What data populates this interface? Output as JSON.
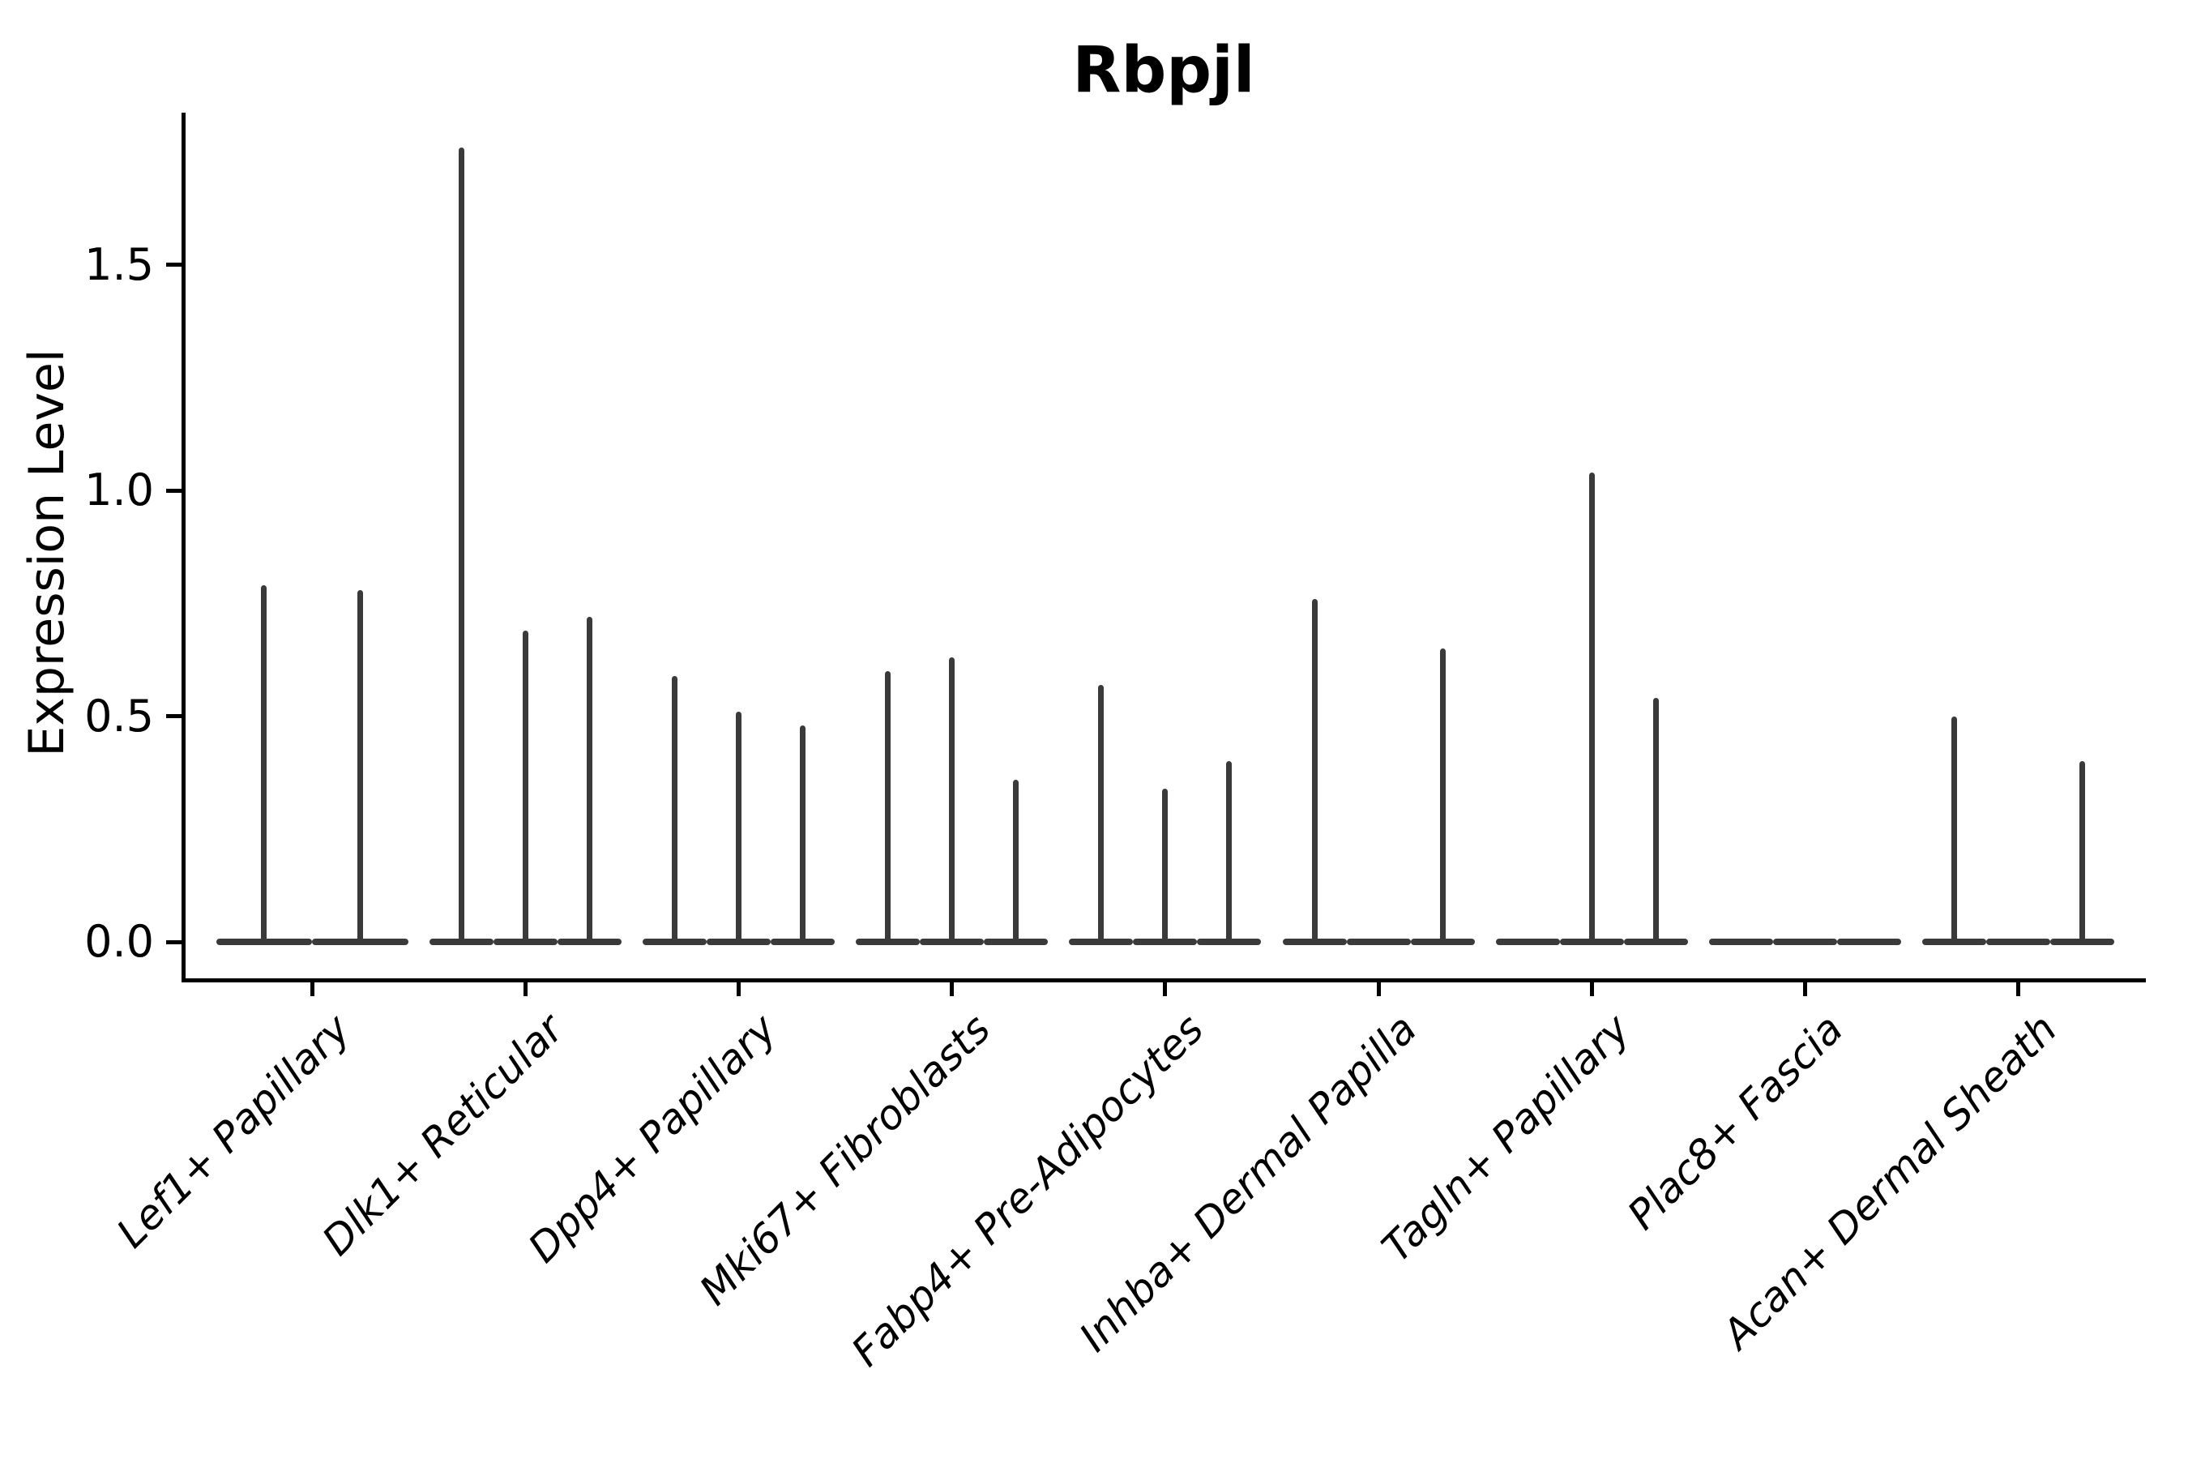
{
  "figure": {
    "title": "Rbpjl",
    "ylabel": "Expression Level"
  },
  "chart_data": {
    "type": "violin",
    "title": "Rbpjl",
    "xlabel": "",
    "ylabel": "Expression Level",
    "ylim": [
      -0.08,
      1.84
    ],
    "yticks": [
      0.0,
      0.5,
      1.0,
      1.5
    ],
    "ytick_labels": [
      "0.0",
      "0.5",
      "1.0",
      "1.5"
    ],
    "grid": false,
    "legend": "none",
    "description": "Violin plot of Rbpjl expression per fibroblast cluster; violins are collapsed to thin spikes (few expressing cells), each group contains 2-3 violin slots, null means a violin with all-zero expression (flat baseline only)",
    "categories": [
      "Lef1+ Papillary",
      "Dlk1+ Reticular",
      "Dpp4+ Papillary",
      "Mki67+ Fibroblasts",
      "Fabp4+ Pre-Adipocytes",
      "Inhba+ Dermal Papilla",
      "Tagln+ Papillary",
      "Plac8+ Fascia",
      "Acan+ Dermal Sheath"
    ],
    "groups": [
      {
        "label": "Lef1+ Papillary",
        "violin_max_values": [
          0.79,
          0.78
        ]
      },
      {
        "label": "Dlk1+ Reticular",
        "violin_max_values": [
          1.76,
          0.69,
          0.72
        ]
      },
      {
        "label": "Dpp4+ Papillary",
        "violin_max_values": [
          0.59,
          0.51,
          0.48
        ]
      },
      {
        "label": "Mki67+ Fibroblasts",
        "violin_max_values": [
          0.6,
          0.63,
          0.36
        ]
      },
      {
        "label": "Fabp4+ Pre-Adipocytes",
        "violin_max_values": [
          0.57,
          0.34,
          0.4
        ]
      },
      {
        "label": "Inhba+ Dermal Papilla",
        "violin_max_values": [
          0.76,
          null,
          0.65
        ]
      },
      {
        "label": "Tagln+ Papillary",
        "violin_max_values": [
          null,
          1.04,
          0.54
        ]
      },
      {
        "label": "Plac8+ Fascia",
        "violin_max_values": [
          null,
          null,
          null
        ]
      },
      {
        "label": "Acan+ Dermal Sheath",
        "violin_max_values": [
          0.5,
          null,
          0.4
        ]
      }
    ],
    "colors": {
      "spike": "#3a3a3a",
      "axis": "#000000",
      "background": "#ffffff"
    }
  }
}
